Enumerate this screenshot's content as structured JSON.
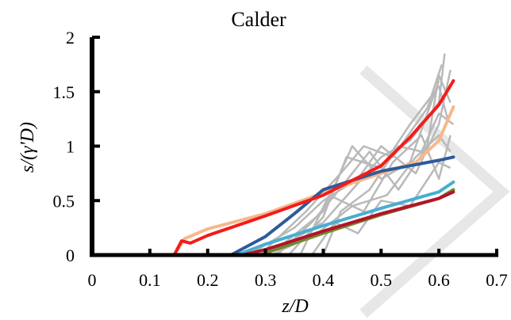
{
  "chart_data": {
    "type": "line",
    "title": "Calder",
    "xlabel": "z/D",
    "ylabel": "s/(γ'D)",
    "xlim": [
      0,
      0.7
    ],
    "ylim": [
      0,
      2
    ],
    "x_ticks": [
      "0",
      "0.1",
      "0.2",
      "0.3",
      "0.4",
      "0.5",
      "0.6",
      "0.7"
    ],
    "y_ticks": [
      "0",
      "0.5",
      "1",
      "1.5",
      "2"
    ],
    "grid": false,
    "legend": "none",
    "series": [
      {
        "color": "#f7b88a",
        "points": [
          [
            0,
            0
          ],
          [
            0.142,
            0
          ],
          [
            0.16,
            0.15
          ],
          [
            0.2,
            0.24
          ],
          [
            0.3,
            0.38
          ],
          [
            0.4,
            0.57
          ],
          [
            0.5,
            0.75
          ],
          [
            0.56,
            0.85
          ],
          [
            0.6,
            1.05
          ],
          [
            0.625,
            1.36
          ]
        ]
      },
      {
        "color": "#2e5a99",
        "points": [
          [
            0.24,
            0
          ],
          [
            0.3,
            0.17
          ],
          [
            0.35,
            0.38
          ],
          [
            0.4,
            0.6
          ],
          [
            0.5,
            0.77
          ],
          [
            0.6,
            0.87
          ],
          [
            0.625,
            0.9
          ]
        ]
      },
      {
        "color": "#46afd1",
        "points": [
          [
            0.142,
            0
          ],
          [
            0.25,
            0
          ],
          [
            0.3,
            0.1
          ],
          [
            0.4,
            0.27
          ],
          [
            0.5,
            0.43
          ],
          [
            0.6,
            0.58
          ],
          [
            0.625,
            0.67
          ]
        ]
      },
      {
        "color": "#6e8b2e",
        "points": [
          [
            0.29,
            0
          ],
          [
            0.4,
            0.2
          ],
          [
            0.5,
            0.37
          ],
          [
            0.6,
            0.52
          ],
          [
            0.625,
            0.6
          ]
        ]
      },
      {
        "color": "#b3132b",
        "points": [
          [
            0.26,
            0
          ],
          [
            0.3,
            0.05
          ],
          [
            0.4,
            0.22
          ],
          [
            0.5,
            0.38
          ],
          [
            0.6,
            0.52
          ],
          [
            0.625,
            0.58
          ]
        ]
      },
      {
        "color": "#f21c1c",
        "points": [
          [
            0,
            0
          ],
          [
            0.142,
            0
          ],
          [
            0.155,
            0.13
          ],
          [
            0.17,
            0.11
          ],
          [
            0.2,
            0.18
          ],
          [
            0.3,
            0.36
          ],
          [
            0.4,
            0.55
          ],
          [
            0.5,
            0.82
          ],
          [
            0.55,
            1.08
          ],
          [
            0.6,
            1.38
          ],
          [
            0.625,
            1.6
          ]
        ]
      }
    ],
    "gray_series": [
      [
        [
          0.3,
          0
        ],
        [
          0.4,
          0.3
        ],
        [
          0.45,
          0.6
        ],
        [
          0.5,
          0.9
        ],
        [
          0.55,
          1.05
        ],
        [
          0.6,
          1.4
        ],
        [
          0.61,
          1.85
        ]
      ],
      [
        [
          0.32,
          0
        ],
        [
          0.38,
          0.3
        ],
        [
          0.42,
          0.55
        ],
        [
          0.48,
          0.95
        ],
        [
          0.53,
          0.6
        ],
        [
          0.58,
          1.0
        ],
        [
          0.6,
          1.65
        ],
        [
          0.62,
          1.4
        ]
      ],
      [
        [
          0.27,
          0
        ],
        [
          0.35,
          0.25
        ],
        [
          0.4,
          0.5
        ],
        [
          0.46,
          0.7
        ],
        [
          0.5,
          1.0
        ],
        [
          0.56,
          0.75
        ],
        [
          0.6,
          1.2
        ],
        [
          0.62,
          1.7
        ]
      ],
      [
        [
          0.34,
          0
        ],
        [
          0.4,
          0.35
        ],
        [
          0.44,
          0.9
        ],
        [
          0.5,
          0.8
        ],
        [
          0.55,
          1.2
        ],
        [
          0.6,
          1.55
        ],
        [
          0.615,
          1.25
        ]
      ],
      [
        [
          0.36,
          0
        ],
        [
          0.41,
          0.55
        ],
        [
          0.47,
          0.4
        ],
        [
          0.52,
          0.85
        ],
        [
          0.57,
          1.1
        ],
        [
          0.6,
          0.7
        ],
        [
          0.62,
          1.1
        ]
      ],
      [
        [
          0.29,
          0
        ],
        [
          0.37,
          0.4
        ],
        [
          0.43,
          0.75
        ],
        [
          0.47,
          1.0
        ],
        [
          0.52,
          0.9
        ],
        [
          0.58,
          1.35
        ],
        [
          0.605,
          1.75
        ]
      ],
      [
        [
          0.31,
          0
        ],
        [
          0.39,
          0.2
        ],
        [
          0.45,
          0.45
        ],
        [
          0.51,
          0.55
        ],
        [
          0.56,
          0.9
        ],
        [
          0.6,
          1.1
        ],
        [
          0.62,
          0.95
        ]
      ],
      [
        [
          0.38,
          0
        ],
        [
          0.42,
          0.3
        ],
        [
          0.46,
          0.2
        ],
        [
          0.5,
          0.5
        ],
        [
          0.55,
          0.45
        ],
        [
          0.6,
          0.85
        ],
        [
          0.62,
          0.8
        ]
      ],
      [
        [
          0.4,
          0
        ],
        [
          0.43,
          0.4
        ],
        [
          0.48,
          0.6
        ],
        [
          0.53,
          1.0
        ],
        [
          0.57,
          0.95
        ],
        [
          0.6,
          1.3
        ],
        [
          0.625,
          1.2
        ]
      ],
      [
        [
          0.28,
          0
        ],
        [
          0.33,
          0.1
        ],
        [
          0.4,
          0.4
        ],
        [
          0.45,
          1.0
        ],
        [
          0.5,
          0.7
        ],
        [
          0.55,
          0.85
        ],
        [
          0.6,
          1.6
        ]
      ]
    ]
  }
}
